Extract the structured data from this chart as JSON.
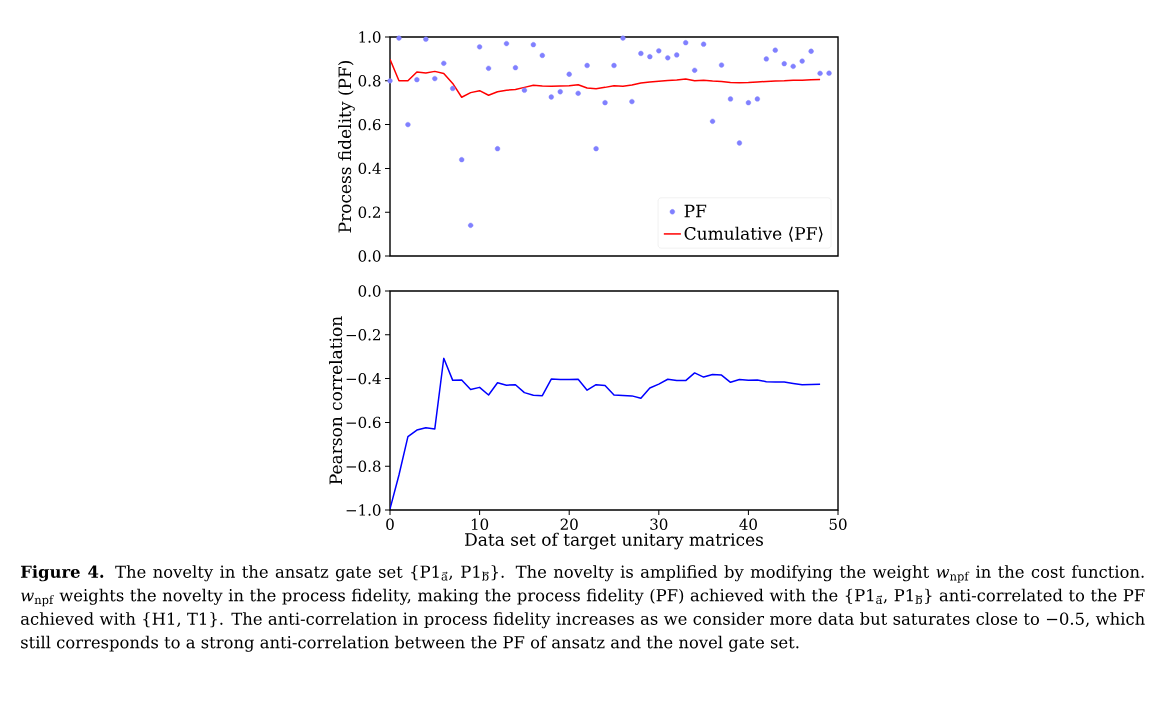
{
  "chart_data": [
    {
      "type": "scatter",
      "ylabel": "Process fidelity (PF)",
      "xlim": [
        0,
        50
      ],
      "ylim": [
        0,
        1
      ],
      "tick_labels": "y",
      "yticks": [
        {
          "value": 0,
          "label": "0.0"
        },
        {
          "value": 0.2,
          "label": "0.2"
        },
        {
          "value": 0.4,
          "label": "0.4"
        },
        {
          "value": 0.6,
          "label": "0.6"
        },
        {
          "value": 0.8,
          "label": "0.8"
        },
        {
          "value": 1,
          "label": "1.0"
        }
      ],
      "legend": "bottom right",
      "series": [
        {
          "name": "PF",
          "type": "scatter",
          "color": "#8080ff",
          "x": [
            0,
            1,
            2,
            3,
            4,
            5,
            6,
            7,
            8,
            9,
            10,
            11,
            12,
            13,
            14,
            15,
            16,
            17,
            18,
            19,
            20,
            21,
            22,
            23,
            24,
            25,
            26,
            27,
            28,
            29,
            30,
            31,
            32,
            33,
            34,
            35,
            36,
            37,
            38,
            39,
            40,
            41,
            42,
            43,
            44,
            45,
            46,
            47,
            48,
            49
          ],
          "values": [
            0.8,
            0.995,
            0.6,
            0.805,
            0.99,
            0.81,
            0.88,
            0.765,
            0.44,
            0.14,
            0.955,
            0.857,
            0.49,
            0.97,
            0.86,
            0.757,
            0.965,
            0.916,
            0.726,
            0.75,
            0.83,
            0.743,
            0.87,
            0.49,
            0.7,
            0.87,
            0.995,
            0.705,
            0.925,
            0.91,
            0.937,
            0.905,
            0.918,
            0.974,
            0.848,
            0.967,
            0.615,
            0.872,
            0.717,
            0.516,
            0.7,
            0.717,
            0.9,
            0.94,
            0.878,
            0.866,
            0.89,
            0.935,
            0.834,
            0.835
          ]
        },
        {
          "name": "Cumulative ⟨PF⟩",
          "type": "line",
          "color": "#ff0000",
          "x": [
            0,
            1,
            2,
            3,
            4,
            5,
            6,
            7,
            8,
            9,
            10,
            11,
            12,
            13,
            14,
            15,
            16,
            17,
            18,
            19,
            20,
            21,
            22,
            23,
            24,
            25,
            26,
            27,
            28,
            29,
            30,
            31,
            32,
            33,
            34,
            35,
            36,
            37,
            38,
            39,
            40,
            41,
            42,
            43,
            44,
            45,
            46,
            47,
            48
          ],
          "values": [
            0.898,
            0.8,
            0.8,
            0.84,
            0.836,
            0.843,
            0.833,
            0.788,
            0.725,
            0.746,
            0.755,
            0.734,
            0.75,
            0.757,
            0.76,
            0.77,
            0.78,
            0.776,
            0.775,
            0.776,
            0.777,
            0.782,
            0.767,
            0.764,
            0.77,
            0.777,
            0.775,
            0.781,
            0.79,
            0.794,
            0.798,
            0.801,
            0.804,
            0.808,
            0.8,
            0.802,
            0.799,
            0.797,
            0.792,
            0.791,
            0.792,
            0.795,
            0.797,
            0.799,
            0.8,
            0.802,
            0.803,
            0.805,
            0.806
          ]
        }
      ]
    },
    {
      "type": "line",
      "xlabel": "Data set of target unitary matrices",
      "ylabel": "Pearson correlation",
      "xlim": [
        0,
        50
      ],
      "ylim": [
        -1,
        0
      ],
      "xticks": [
        0,
        10,
        20,
        30,
        40,
        50
      ],
      "yticks": [
        {
          "value": -1,
          "label": "−1.0"
        },
        {
          "value": -0.8,
          "label": "−0.8"
        },
        {
          "value": -0.6,
          "label": "−0.6"
        },
        {
          "value": -0.4,
          "label": "−0.4"
        },
        {
          "value": -0.2,
          "label": "−0.2"
        },
        {
          "value": 0,
          "label": "0.0"
        }
      ],
      "series": [
        {
          "color": "#0000ff",
          "x": [
            0,
            1,
            2,
            3,
            4,
            5,
            6,
            7,
            8,
            9,
            10,
            11,
            12,
            13,
            14,
            15,
            16,
            17,
            18,
            19,
            20,
            21,
            22,
            23,
            24,
            25,
            26,
            27,
            28,
            29,
            30,
            31,
            32,
            33,
            34,
            35,
            36,
            37,
            38,
            39,
            40,
            41,
            42,
            43,
            44,
            45,
            46,
            47,
            48
          ],
          "values": [
            -0.995,
            -0.84,
            -0.665,
            -0.635,
            -0.624,
            -0.63,
            -0.307,
            -0.408,
            -0.406,
            -0.45,
            -0.44,
            -0.475,
            -0.419,
            -0.43,
            -0.428,
            -0.464,
            -0.476,
            -0.478,
            -0.402,
            -0.404,
            -0.404,
            -0.403,
            -0.453,
            -0.428,
            -0.432,
            -0.475,
            -0.477,
            -0.479,
            -0.49,
            -0.443,
            -0.425,
            -0.403,
            -0.409,
            -0.409,
            -0.374,
            -0.393,
            -0.381,
            -0.384,
            -0.417,
            -0.404,
            -0.407,
            -0.406,
            -0.414,
            -0.415,
            -0.416,
            -0.422,
            -0.428,
            -0.427,
            -0.426
          ]
        }
      ],
      "annotations": [
        "**Figure 4.** The novelty in the ansatz gate set {P1$_{a⃗}$, P1$_{b⃗}$}. The novelty is amplified by modifying the weight *w*$_{npf}$ in the cost function. *w*$_{npf}$ weights the novelty in the process fidelity, making the process fidelity (PF) achieved with the {P1$_{a⃗}$, P1$_{b⃗}$} anti-correlated to the PF achieved with {H1, T1}. The anti-correlation in process fidelity increases as we consider more data but saturates close to −0.5, which still corresponds to a strong anti-correlation between the PF of ansatz and the novel gate set."
      ]
    }
  ]
}
